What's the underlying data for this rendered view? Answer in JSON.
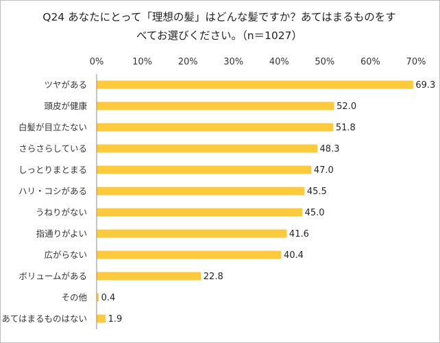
{
  "chart_data": {
    "type": "bar",
    "orientation": "horizontal",
    "title": "Q24 あなたにとって「理想の髪」はどんな髪ですか？あてはまるものをすべてお選びください。（n＝1027）",
    "categories": [
      "ツヤがある",
      "頭皮が健康",
      "白髪が目立たない",
      "さらさらしている",
      "しっとりまとまる",
      "ハリ・コシがある",
      "うねりがない",
      "指通りがよい",
      "広がらない",
      "ボリュームがある",
      "その他",
      "あてはまるものはない"
    ],
    "values": [
      69.3,
      52.0,
      51.8,
      48.3,
      47.0,
      45.5,
      45.0,
      41.6,
      40.4,
      22.8,
      0.4,
      1.9
    ],
    "value_labels": [
      "69.3",
      "52.0",
      "51.8",
      "48.3",
      "47.0",
      "45.5",
      "45.0",
      "41.6",
      "40.4",
      "22.8",
      "0.4",
      "1.9"
    ],
    "x_ticks": [
      "0%",
      "10%",
      "20%",
      "30%",
      "40%",
      "50%",
      "60%",
      "70%"
    ],
    "xlim": [
      0,
      70
    ],
    "xlabel": "",
    "ylabel": "",
    "grid": false,
    "legend": "none",
    "colors": {
      "bar": "#FDCA3E",
      "axis": "#8c8c8c",
      "frame": "#bdbdbd"
    }
  }
}
